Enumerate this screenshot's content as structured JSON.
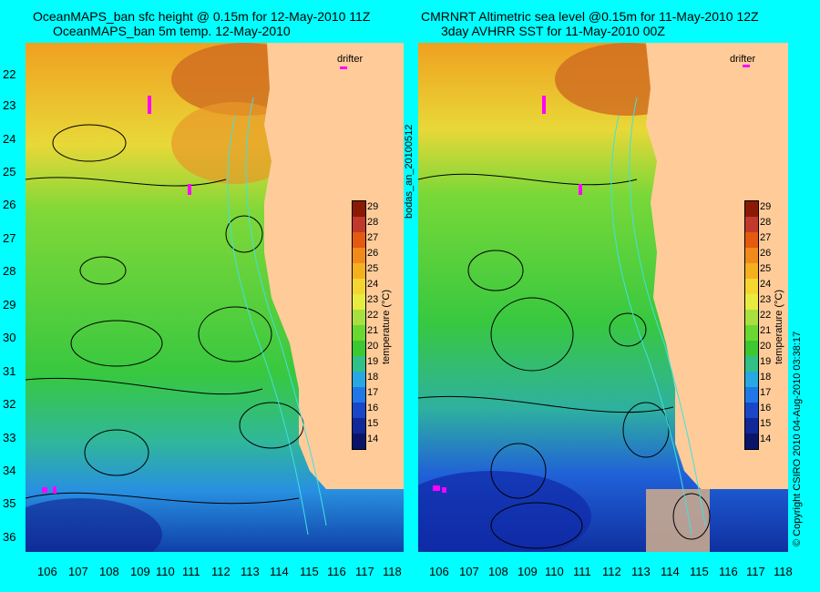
{
  "left_panel": {
    "title_line1": "OceanMAPS_ban sfc height @ 0.15m for 12-May-2010 11Z",
    "title_line2": "OceanMAPS_ban 5m temp. 12-May-2010",
    "drifter_label": "drifter"
  },
  "right_panel": {
    "title_line1": "CMRNRT Altimetric sea level  @0.15m  for 11-May-2010 12Z",
    "title_line2": "3day AVHRR SST for 11-May-2010 00Z",
    "drifter_label": "drifter"
  },
  "side_labels": {
    "middle": "bodas_an_20100512",
    "right": "© Copyright CSIRO 2010   04-Aug-2010 03:38:17"
  },
  "latitude_labels": [
    "22",
    "23",
    "24",
    "25",
    "26",
    "27",
    "28",
    "29",
    "30",
    "31",
    "32",
    "33",
    "34",
    "35",
    "36"
  ],
  "longitude_labels": [
    "106",
    "107",
    "108",
    "109",
    "110",
    "111",
    "112",
    "113",
    "114",
    "115",
    "116",
    "117",
    "118"
  ],
  "colorbar": {
    "label": "temperature (°C)",
    "ticks": [
      "29",
      "28",
      "27",
      "26",
      "25",
      "24",
      "23",
      "22",
      "21",
      "20",
      "19",
      "18",
      "17",
      "16",
      "15",
      "14"
    ],
    "colors": [
      "#8a1a05",
      "#c0392b",
      "#e35a10",
      "#f08a1a",
      "#f5b020",
      "#f5d630",
      "#e8ec40",
      "#a8e040",
      "#6ad830",
      "#3cc830",
      "#30c088",
      "#28a8e0",
      "#2078e8",
      "#1848c8",
      "#102898",
      "#0a1468"
    ]
  },
  "land_color": "#ffcc99"
}
